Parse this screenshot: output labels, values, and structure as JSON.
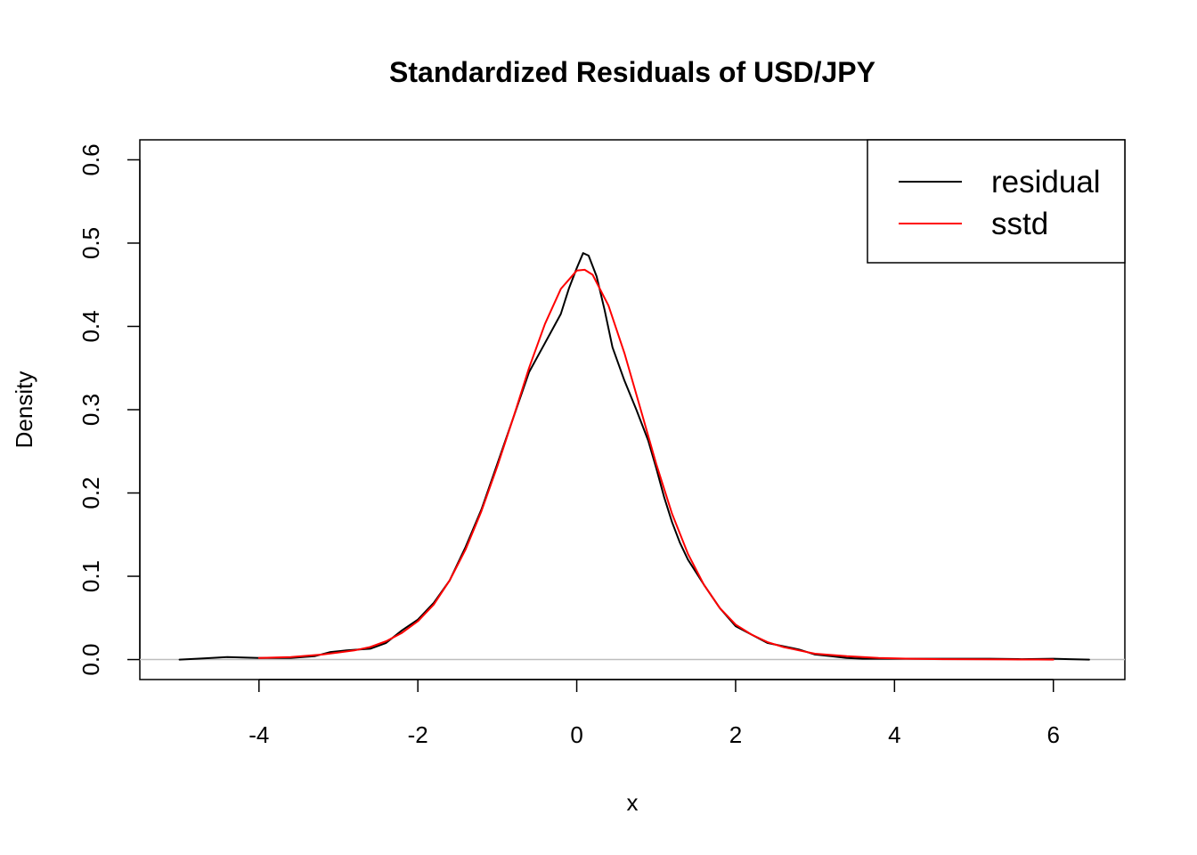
{
  "chart_data": {
    "type": "line",
    "title": "Standardized Residuals of USD/JPY",
    "xlabel": "x",
    "ylabel": "Density",
    "xlim": [
      -5.5,
      6.9
    ],
    "ylim": [
      -0.024,
      0.624
    ],
    "xticks": [
      -4,
      -2,
      0,
      2,
      4,
      6
    ],
    "yticks": [
      0.0,
      0.1,
      0.2,
      0.3,
      0.4,
      0.5,
      0.6
    ],
    "xtick_labels": [
      "-4",
      "-2",
      "0",
      "2",
      "4",
      "6"
    ],
    "ytick_labels": [
      "0.0",
      "0.1",
      "0.2",
      "0.3",
      "0.4",
      "0.5",
      "0.6"
    ],
    "grid": false,
    "baseline": {
      "y": 0,
      "color": "#bebebe"
    },
    "legend": {
      "position": "top-right",
      "entries": [
        {
          "label": "residual",
          "color": "#000000"
        },
        {
          "label": "sstd",
          "color": "#ff0000"
        }
      ]
    },
    "series": [
      {
        "name": "residual",
        "color": "#000000",
        "x": [
          -5.0,
          -4.7,
          -4.4,
          -4.0,
          -3.6,
          -3.3,
          -3.1,
          -2.9,
          -2.6,
          -2.4,
          -2.2,
          -2.0,
          -1.8,
          -1.6,
          -1.4,
          -1.2,
          -1.0,
          -0.8,
          -0.6,
          -0.4,
          -0.2,
          -0.1,
          0.0,
          0.08,
          0.15,
          0.25,
          0.35,
          0.45,
          0.6,
          0.75,
          0.9,
          1.0,
          1.1,
          1.2,
          1.3,
          1.4,
          1.6,
          1.8,
          2.0,
          2.2,
          2.4,
          2.6,
          2.8,
          3.0,
          3.2,
          3.4,
          3.6,
          3.8,
          4.0,
          4.3,
          4.6,
          4.9,
          5.2,
          5.6,
          6.0,
          6.2,
          6.45
        ],
        "values": [
          0.0,
          0.0015,
          0.003,
          0.002,
          0.002,
          0.004,
          0.009,
          0.011,
          0.013,
          0.02,
          0.035,
          0.048,
          0.068,
          0.095,
          0.135,
          0.18,
          0.235,
          0.29,
          0.345,
          0.38,
          0.415,
          0.445,
          0.47,
          0.488,
          0.485,
          0.46,
          0.42,
          0.375,
          0.335,
          0.3,
          0.263,
          0.23,
          0.195,
          0.165,
          0.14,
          0.12,
          0.09,
          0.062,
          0.04,
          0.03,
          0.02,
          0.016,
          0.012,
          0.006,
          0.004,
          0.002,
          0.001,
          0.001,
          0.001,
          0.001,
          0.001,
          0.001,
          0.001,
          0.0005,
          0.001,
          0.0005,
          0.0
        ]
      },
      {
        "name": "sstd",
        "color": "#ff0000",
        "x": [
          -4.0,
          -3.6,
          -3.2,
          -2.8,
          -2.6,
          -2.4,
          -2.2,
          -2.0,
          -1.8,
          -1.6,
          -1.4,
          -1.2,
          -1.0,
          -0.8,
          -0.6,
          -0.4,
          -0.2,
          0.0,
          0.1,
          0.2,
          0.4,
          0.6,
          0.8,
          1.0,
          1.2,
          1.4,
          1.6,
          1.8,
          2.0,
          2.2,
          2.4,
          2.6,
          2.8,
          3.0,
          3.4,
          3.8,
          4.2,
          4.6,
          5.0,
          5.4,
          5.8,
          6.0
        ],
        "values": [
          0.002,
          0.003,
          0.006,
          0.011,
          0.015,
          0.022,
          0.032,
          0.046,
          0.066,
          0.095,
          0.132,
          0.178,
          0.232,
          0.29,
          0.35,
          0.403,
          0.445,
          0.467,
          0.468,
          0.462,
          0.425,
          0.368,
          0.302,
          0.235,
          0.175,
          0.127,
          0.09,
          0.062,
          0.042,
          0.03,
          0.021,
          0.015,
          0.011,
          0.007,
          0.004,
          0.002,
          0.001,
          0.0005,
          0.0003,
          0.0002,
          0.0001,
          0.0
        ]
      }
    ]
  }
}
